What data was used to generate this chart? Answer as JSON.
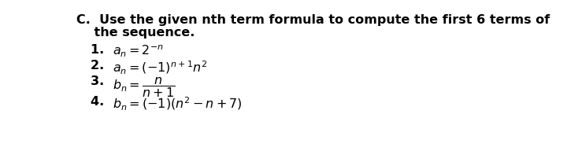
{
  "background_color": "#ffffff",
  "text_color": "#000000",
  "heading1": "C.  Use the given nth term formula to compute the first 6 terms of",
  "heading2": "    the sequence.",
  "line1_num": "1. ",
  "line1_math": "$a_n = 2^{-n}$",
  "line2_num": "2. ",
  "line2_math": "$a_n = (-1)^{n+1}n^2$",
  "line3_num": "3. ",
  "line3_math": "$b_n = \\dfrac{n}{n+1}$",
  "line4_num": "4. ",
  "line4_math": "$b_n = (-1)(n^2 - n + 7)$",
  "heading_fontsize": 11.5,
  "item_fontsize": 11.5,
  "fig_width": 7.2,
  "fig_height": 1.87,
  "dpi": 100
}
